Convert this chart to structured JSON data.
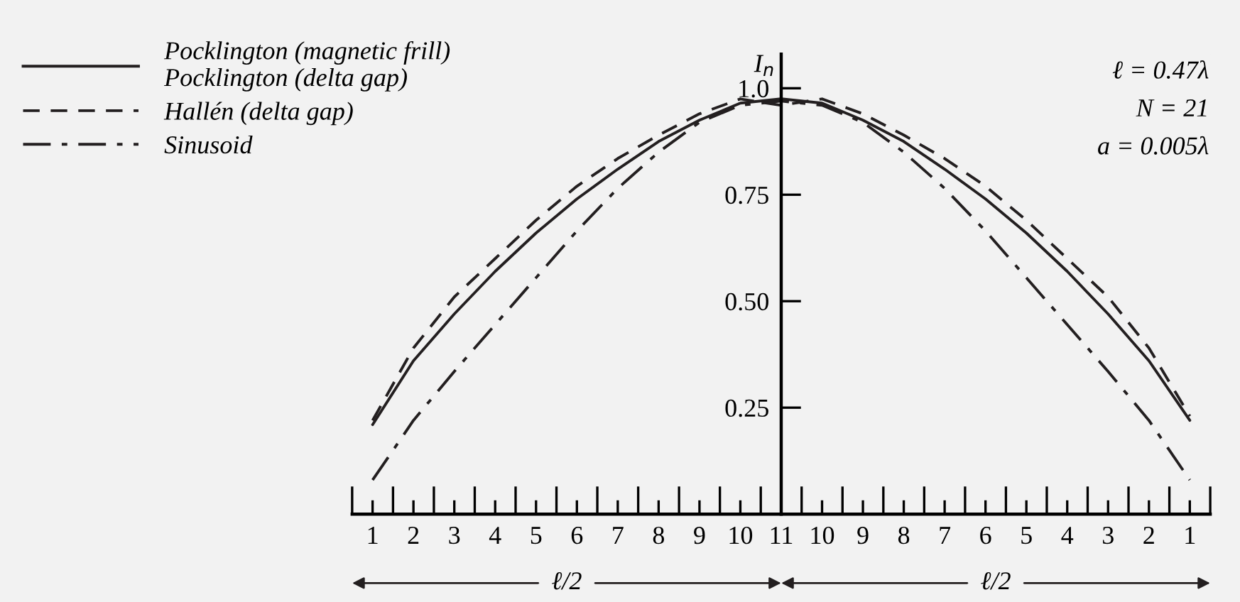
{
  "chart_data": {
    "type": "line",
    "ylabel": "I$_{n}$",
    "categories": [
      "1",
      "2",
      "3",
      "4",
      "5",
      "6",
      "7",
      "8",
      "9",
      "10",
      "11",
      "10",
      "9",
      "8",
      "7",
      "6",
      "5",
      "4",
      "3",
      "2",
      "1"
    ],
    "ylim": [
      0,
      1.08
    ],
    "yticks": [
      0.25,
      {
        "value": 0.5,
        "label": "0.50"
      },
      0.75,
      {
        "value": 1.0,
        "label": "1.0"
      }
    ],
    "series": [
      {
        "name": "Pocklington (magnetic frill)\nPocklington (delta gap)",
        "color": "#231f20",
        "line_style": "solid",
        "values": [
          0.21,
          0.36,
          0.47,
          0.57,
          0.66,
          0.74,
          0.81,
          0.875,
          0.925,
          0.965,
          0.975,
          0.965,
          0.925,
          0.875,
          0.81,
          0.74,
          0.66,
          0.57,
          0.47,
          0.36,
          0.22
        ]
      },
      {
        "name": "Hallén (delta gap)",
        "color": "#231f20",
        "line_style": "dashed",
        "values": [
          0.22,
          0.39,
          0.51,
          0.6,
          0.69,
          0.77,
          0.835,
          0.89,
          0.94,
          0.975,
          0.96,
          0.975,
          0.94,
          0.89,
          0.835,
          0.77,
          0.69,
          0.6,
          0.51,
          0.39,
          0.23
        ]
      },
      {
        "name": "Sinusoid",
        "color": "#231f20",
        "line_style": "dashdot",
        "values": [
          0.08,
          0.22,
          0.335,
          0.445,
          0.555,
          0.665,
          0.765,
          0.85,
          0.92,
          0.96,
          0.97,
          0.96,
          0.92,
          0.85,
          0.765,
          0.665,
          0.555,
          0.445,
          0.335,
          0.22,
          0.08
        ]
      }
    ],
    "legend": "top left",
    "annotations": [
      "ℓ = 0.47λ",
      "N = 21",
      "a = 0.005λ",
      "ℓ/2",
      "ℓ/2"
    ]
  }
}
